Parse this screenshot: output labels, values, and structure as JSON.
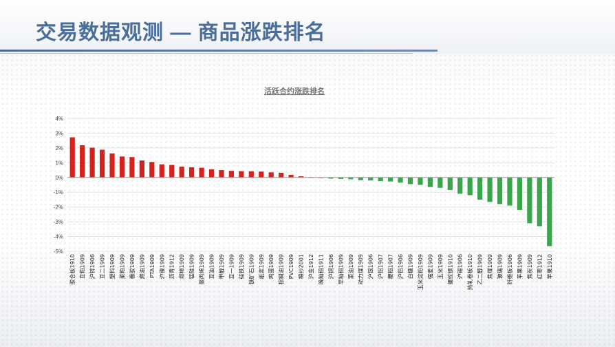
{
  "slide": {
    "title": "交易数据观测 — 商品涨跌排名"
  },
  "colors": {
    "up": "#d6221c",
    "down": "#3aa64c",
    "title": "#4a6e9b"
  },
  "chart_data": {
    "type": "bar",
    "title": "活跃合约涨跌排名",
    "xlabel": "",
    "ylabel": "",
    "ylim": [
      -0.05,
      0.04
    ],
    "yticks": [
      "4%",
      "3%",
      "2%",
      "1%",
      "0%",
      "-1%",
      "-2%",
      "-3%",
      "-4%",
      "-5%"
    ],
    "grid": true,
    "legend": "none",
    "categories": [
      "胶合板1910",
      "豆粕1909",
      "沪锌1906",
      "豆二1909",
      "塑料1909",
      "菜粕1909",
      "橡胶1909",
      "燃油1909",
      "PTA1909",
      "沪镍1909",
      "沥青1912",
      "郑棉1909",
      "锰硅1909",
      "聚丙烯1909",
      "豆油1909",
      "甲醇1909",
      "豆一1909",
      "硅铁1909",
      "铁矿石1909",
      "纸浆1909",
      "鸡蛋1909",
      "棕榈油1909",
      "PVC1909",
      "棉纱2001",
      "沪金1912",
      "晚籼稻1911",
      "沪铜1906",
      "早籼稻1909",
      "菜油1909",
      "动力煤1909",
      "沪银1906",
      "沪铝1907",
      "粳稻1907",
      "沪铅1906",
      "白糖1909",
      "玉米淀粉1909",
      "强麦1909",
      "玉米1909",
      "螺纹钢1910",
      "沪锡1906",
      "热轧卷板1910",
      "乙二醇1909",
      "焦煤1909",
      "玻璃1909",
      "纤维板1906",
      "苹果1909",
      "焦炭1909",
      "红枣1912",
      "苹果1910"
    ],
    "values": [
      0.0272,
      0.0218,
      0.0202,
      0.0188,
      0.0163,
      0.0142,
      0.0138,
      0.0115,
      0.0105,
      0.0089,
      0.0085,
      0.0073,
      0.0069,
      0.0066,
      0.0055,
      0.005,
      0.0045,
      0.0043,
      0.0042,
      0.004,
      0.0035,
      0.0032,
      0.0018,
      0.0008,
      0.0002,
      0.0001,
      -0.0008,
      -0.001,
      -0.0012,
      -0.0018,
      -0.002,
      -0.0025,
      -0.0027,
      -0.0035,
      -0.0045,
      -0.005,
      -0.0065,
      -0.007,
      -0.0085,
      -0.011,
      -0.012,
      -0.015,
      -0.0165,
      -0.018,
      -0.019,
      -0.022,
      -0.031,
      -0.033,
      -0.0465
    ]
  }
}
